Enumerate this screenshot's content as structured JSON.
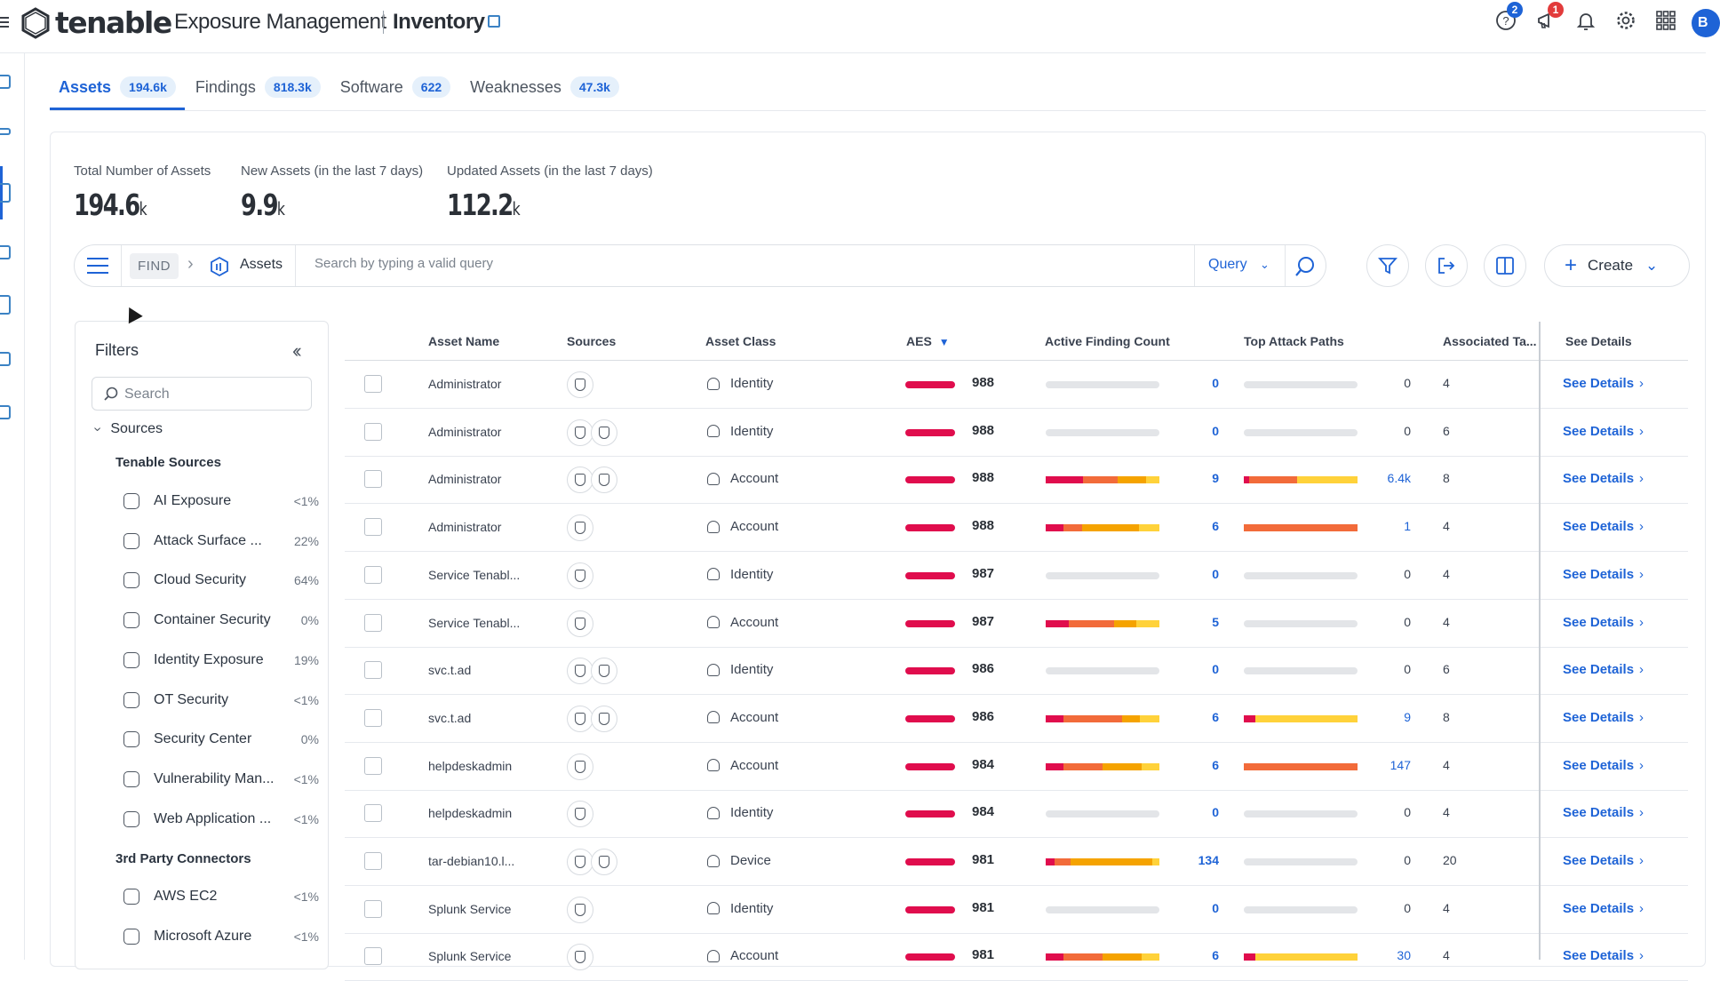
{
  "header": {
    "logo_text": "tenable",
    "product": "Exposure Management",
    "module": "Inventory",
    "help_badge": "2",
    "announce_badge": "1",
    "avatar_initial": "B"
  },
  "tabs": [
    {
      "label": "Assets",
      "count": "194.6k",
      "active": true
    },
    {
      "label": "Findings",
      "count": "818.3k",
      "active": false
    },
    {
      "label": "Software",
      "count": "622",
      "active": false
    },
    {
      "label": "Weaknesses",
      "count": "47.3k",
      "active": false
    }
  ],
  "stats": [
    {
      "label": "Total Number of Assets",
      "value": "194.6",
      "unit": "k"
    },
    {
      "label": "New Assets (in the last 7 days)",
      "value": "9.9",
      "unit": "k"
    },
    {
      "label": "Updated Assets (in the last 7 days)",
      "value": "112.2",
      "unit": "k"
    }
  ],
  "query_bar": {
    "find_label": "FIND",
    "object_label": "Assets",
    "placeholder": "Search by typing a valid query",
    "query_label": "Query",
    "create_label": "Create"
  },
  "filters": {
    "title": "Filters",
    "search_placeholder": "Search",
    "sources_label": "Sources",
    "tenable_group": "Tenable Sources",
    "tenable_items": [
      {
        "name": "AI Exposure",
        "pct": "<1%"
      },
      {
        "name": "Attack Surface ...",
        "pct": "22%"
      },
      {
        "name": "Cloud Security",
        "pct": "64%"
      },
      {
        "name": "Container Security",
        "pct": "0%"
      },
      {
        "name": "Identity Exposure",
        "pct": "19%"
      },
      {
        "name": "OT Security",
        "pct": "<1%"
      },
      {
        "name": "Security Center",
        "pct": "0%"
      },
      {
        "name": "Vulnerability Man...",
        "pct": "<1%"
      },
      {
        "name": "Web Application ...",
        "pct": "<1%"
      }
    ],
    "third_party_group": "3rd Party Connectors",
    "third_party_items": [
      {
        "name": "AWS EC2",
        "pct": "<1%"
      },
      {
        "name": "Microsoft Azure",
        "pct": "<1%"
      }
    ]
  },
  "table": {
    "columns": [
      "Asset Name",
      "Sources",
      "Asset Class",
      "AES",
      "Active Finding Count",
      "Top Attack Paths",
      "Associated Ta...",
      "See Details"
    ],
    "see_details_label": "See Details",
    "rows": [
      {
        "name": "Administrator",
        "sources": 1,
        "asset_class": "Identity",
        "aes": "988",
        "findings": "0",
        "finding_bar": [],
        "paths": "0",
        "path_bar": [],
        "tags": "4"
      },
      {
        "name": "Administrator",
        "sources": 2,
        "asset_class": "Identity",
        "aes": "988",
        "findings": "0",
        "finding_bar": [],
        "paths": "0",
        "path_bar": [],
        "tags": "6"
      },
      {
        "name": "Administrator",
        "sources": 2,
        "asset_class": "Account",
        "aes": "988",
        "findings": "9",
        "finding_bar": [
          [
            "#e00d4d",
            0.33
          ],
          [
            "#f26b3a",
            0.3
          ],
          [
            "#f5a300",
            0.25
          ],
          [
            "#ffd23a",
            0.12
          ]
        ],
        "paths": "6.4k",
        "path_bar": [
          [
            "#e00d4d",
            0.05
          ],
          [
            "#f26b3a",
            0.42
          ],
          [
            "#ffd23a",
            0.53
          ]
        ],
        "tags": "8"
      },
      {
        "name": "Administrator",
        "sources": 1,
        "asset_class": "Account",
        "aes": "988",
        "findings": "6",
        "finding_bar": [
          [
            "#e00d4d",
            0.16
          ],
          [
            "#f26b3a",
            0.16
          ],
          [
            "#f5a300",
            0.5
          ],
          [
            "#ffd23a",
            0.18
          ]
        ],
        "paths": "1",
        "path_bar": [
          [
            "#f26b3a",
            1.0
          ]
        ],
        "tags": "4"
      },
      {
        "name": "Service Tenabl...",
        "sources": 1,
        "asset_class": "Identity",
        "aes": "987",
        "findings": "0",
        "finding_bar": [],
        "paths": "0",
        "path_bar": [],
        "tags": "4"
      },
      {
        "name": "Service Tenabl...",
        "sources": 1,
        "asset_class": "Account",
        "aes": "987",
        "findings": "5",
        "finding_bar": [
          [
            "#e00d4d",
            0.2
          ],
          [
            "#f26b3a",
            0.4
          ],
          [
            "#f5a300",
            0.2
          ],
          [
            "#ffd23a",
            0.2
          ]
        ],
        "paths": "0",
        "path_bar": [],
        "tags": "4"
      },
      {
        "name": "svc.t.ad",
        "sources": 2,
        "asset_class": "Identity",
        "aes": "986",
        "findings": "0",
        "finding_bar": [],
        "paths": "0",
        "path_bar": [],
        "tags": "6"
      },
      {
        "name": "svc.t.ad",
        "sources": 2,
        "asset_class": "Account",
        "aes": "986",
        "findings": "6",
        "finding_bar": [
          [
            "#e00d4d",
            0.16
          ],
          [
            "#f26b3a",
            0.51
          ],
          [
            "#f5a300",
            0.16
          ],
          [
            "#ffd23a",
            0.17
          ]
        ],
        "paths": "9",
        "path_bar": [
          [
            "#e00d4d",
            0.1
          ],
          [
            "#ffd23a",
            0.9
          ]
        ],
        "tags": "8"
      },
      {
        "name": "helpdeskadmin",
        "sources": 1,
        "asset_class": "Account",
        "aes": "984",
        "findings": "6",
        "finding_bar": [
          [
            "#e00d4d",
            0.16
          ],
          [
            "#f26b3a",
            0.34
          ],
          [
            "#f5a300",
            0.34
          ],
          [
            "#ffd23a",
            0.16
          ]
        ],
        "paths": "147",
        "path_bar": [
          [
            "#f26b3a",
            1.0
          ]
        ],
        "tags": "4"
      },
      {
        "name": "helpdeskadmin",
        "sources": 1,
        "asset_class": "Identity",
        "aes": "984",
        "findings": "0",
        "finding_bar": [],
        "paths": "0",
        "path_bar": [],
        "tags": "4"
      },
      {
        "name": "tar-debian10.l...",
        "sources": 2,
        "asset_class": "Device",
        "aes": "981",
        "findings": "134",
        "finding_bar": [
          [
            "#e00d4d",
            0.08
          ],
          [
            "#f26b3a",
            0.14
          ],
          [
            "#f5a300",
            0.72
          ],
          [
            "#ffd23a",
            0.06
          ]
        ],
        "paths": "0",
        "path_bar": [],
        "tags": "20"
      },
      {
        "name": "Splunk Service",
        "sources": 1,
        "asset_class": "Identity",
        "aes": "981",
        "findings": "0",
        "finding_bar": [],
        "paths": "0",
        "path_bar": [],
        "tags": "4"
      },
      {
        "name": "Splunk Service",
        "sources": 1,
        "asset_class": "Account",
        "aes": "981",
        "findings": "6",
        "finding_bar": [
          [
            "#e00d4d",
            0.16
          ],
          [
            "#f26b3a",
            0.34
          ],
          [
            "#f5a300",
            0.34
          ],
          [
            "#ffd23a",
            0.16
          ]
        ],
        "paths": "30",
        "path_bar": [
          [
            "#e00d4d",
            0.1
          ],
          [
            "#ffd23a",
            0.9
          ]
        ],
        "tags": "4"
      }
    ]
  },
  "colors": {
    "accent": "#1e63d6",
    "aes": "#e00d4d",
    "badge_help": "#1e63d6",
    "badge_announce": "#e23b3b"
  }
}
